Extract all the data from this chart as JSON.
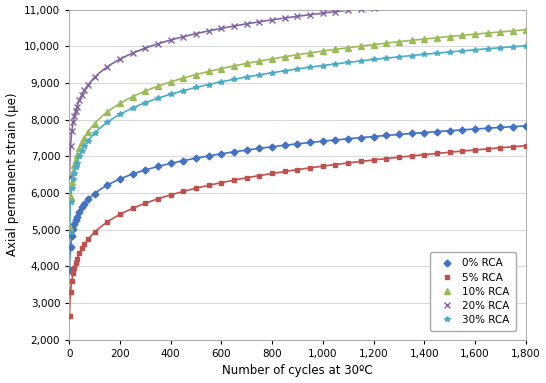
{
  "title": "",
  "xlabel": "Number of cycles at 30ºC",
  "ylabel": "Axial permanent strain (μe)",
  "ylim": [
    2000,
    11000
  ],
  "xlim": [
    0,
    1800
  ],
  "yticks": [
    2000,
    3000,
    4000,
    5000,
    6000,
    7000,
    8000,
    9000,
    10000,
    11000
  ],
  "xticks": [
    0,
    200,
    400,
    600,
    800,
    1000,
    1200,
    1400,
    1600,
    1800
  ],
  "series": [
    {
      "label": "0% RCA",
      "color": "#4472C4",
      "marker": "D",
      "markersize": 3.5,
      "A": 3900,
      "B": 0.093
    },
    {
      "label": "5% RCA",
      "color": "#C0504D",
      "marker": "s",
      "markersize": 3.5,
      "A": 2650,
      "B": 0.135
    },
    {
      "label": "10% RCA",
      "color": "#9BBB59",
      "marker": "^",
      "markersize": 4,
      "A": 5050,
      "B": 0.097
    },
    {
      "label": "20% RCA",
      "color": "#8064A2",
      "marker": "x",
      "markersize": 4,
      "A": 6450,
      "B": 0.076
    },
    {
      "label": "30% RCA",
      "color": "#4BACC6",
      "marker": "*",
      "markersize": 4,
      "A": 4950,
      "B": 0.094
    }
  ],
  "background_color": "#FFFFFF",
  "grid_color": "#C8C8C8",
  "legend_fontsize": 7.5,
  "axis_fontsize": 8.5,
  "tick_fontsize": 7.5
}
